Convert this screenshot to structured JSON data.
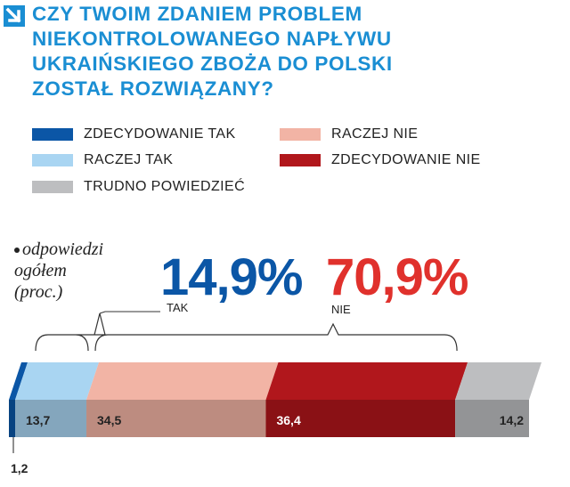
{
  "title_lines": [
    "CZY TWOIM ZDANIEM PROBLEM",
    "NIEKONTROLOWANEGO NAPŁYWU",
    "UKRAIŃSKIEGO ZBOŻA DO POLSKI",
    "ZOSTAŁ ROZWIĄZANY?"
  ],
  "legend": [
    {
      "label": "ZDECYDOWANIE TAK",
      "color": "#0b56a6"
    },
    {
      "label": "RACZEJ TAK",
      "color": "#a9d5f2"
    },
    {
      "label": "TRUDNO POWIEDZIEĆ",
      "color": "#bdbec0"
    },
    {
      "label": "RACZEJ NIE",
      "color": "#f2b4a5"
    },
    {
      "label": "ZDECYDOWANIE NIE",
      "color": "#b1171c"
    }
  ],
  "note": {
    "line1": "odpowiedzi",
    "line2": "ogółem",
    "line3": "(proc.)"
  },
  "totals": {
    "tak_value": "14,9%",
    "tak_label": "TAK",
    "nie_value": "70,9%",
    "nie_label": "NIE"
  },
  "chart_data": {
    "type": "bar",
    "stacked": true,
    "orientation": "horizontal",
    "unit": "%",
    "series": [
      {
        "name": "ZDECYDOWANIE TAK",
        "value": 1.2,
        "label": "1,2",
        "color": "#0b56a6"
      },
      {
        "name": "RACZEJ TAK",
        "value": 13.7,
        "label": "13,7",
        "color": "#a9d5f2"
      },
      {
        "name": "RACZEJ NIE",
        "value": 34.5,
        "label": "34,5",
        "color": "#f2b4a5"
      },
      {
        "name": "ZDECYDOWANIE NIE",
        "value": 36.4,
        "label": "36,4",
        "color": "#b1171c"
      },
      {
        "name": "TRUDNO POWIEDZIEĆ",
        "value": 14.2,
        "label": "14,2",
        "color": "#bdbec0"
      }
    ],
    "groups": [
      {
        "name": "TAK",
        "value": 14.9
      },
      {
        "name": "NIE",
        "value": 70.9
      }
    ]
  }
}
